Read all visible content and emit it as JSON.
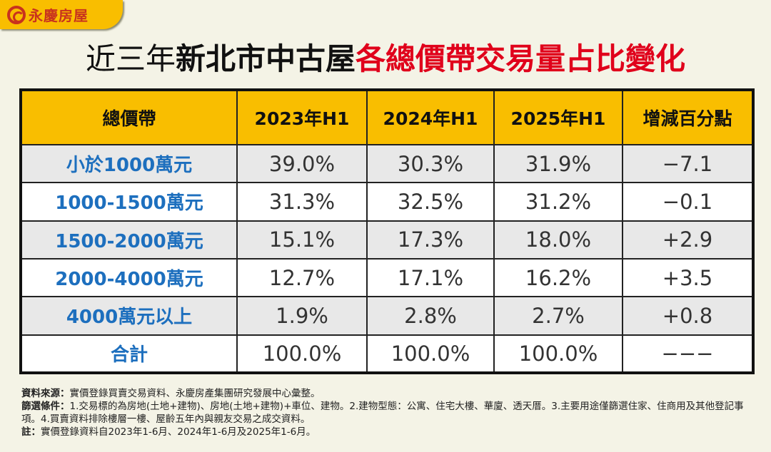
{
  "brand": {
    "logo_text": "永慶房屋",
    "color": "#C8321E"
  },
  "title": {
    "part1": "近三年",
    "part2": "新北市中古屋",
    "part3": "各總價帶交易量占比變化",
    "accent": "#E0001B"
  },
  "table": {
    "headers": [
      "總價帶",
      "2023年H1",
      "2024年H1",
      "2025年H1",
      "增減百分點"
    ],
    "rows": [
      [
        "小於1000萬元",
        "39.0%",
        "30.3%",
        "31.9%",
        "−7.1"
      ],
      [
        "1000-1500萬元",
        "31.3%",
        "32.5%",
        "31.2%",
        "−0.1"
      ],
      [
        "1500-2000萬元",
        "15.1%",
        "17.3%",
        "18.0%",
        "+2.9"
      ],
      [
        "2000-4000萬元",
        "12.7%",
        "17.1%",
        "16.2%",
        "+3.5"
      ],
      [
        "4000萬元以上",
        "1.9%",
        "2.8%",
        "2.7%",
        "+0.8"
      ],
      [
        "合計",
        "100.0%",
        "100.0%",
        "100.0%",
        "−−−"
      ]
    ],
    "header_color": "#F9BE00",
    "label_color": "#1D6FBE"
  },
  "notes": {
    "source_label": "資料來源：",
    "source": "實價登錄買賣交易資料、永慶房產集團研究發展中心彙整。",
    "filter_label": "篩選條件：",
    "filter": "1.交易標的為房地(土地+建物)、房地(土地+建物)+車位、建物。2.建物型態：公寓、住宅大樓、華廈、透天厝。3.主要用途僅篩選住家、住商用及其他登記事項。4.買賣資料排除樓層一樓、屋齡五年內與親友交易之成交資料。",
    "note_label": "註：",
    "note": "實價登錄資料自2023年1-6月、2024年1-6月及2025年1-6月。"
  }
}
